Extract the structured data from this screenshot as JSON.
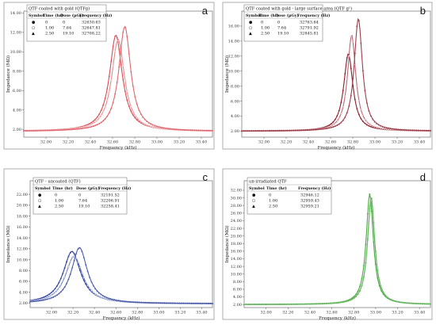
{
  "chart_data": [
    {
      "type": "line",
      "panel_label": "a",
      "legend_title": "QTF coated with gold (QTFg)",
      "legend_headers": [
        "Symbol",
        "Time (hr)",
        "Dose (µGy)",
        "Frequency (Hz)"
      ],
      "xlabel": "Frequency (kHz)",
      "ylabel": "Impedance (MΩ)",
      "xlim": [
        31.8,
        33.5
      ],
      "ylim": [
        1.2,
        14.2
      ],
      "xticks": [
        "32.00",
        "32.20",
        "32.40",
        "32.60",
        "32.80",
        "33.00",
        "33.20",
        "33.40"
      ],
      "yticks": [
        "2.00",
        "4.00",
        "6.00",
        "8.00",
        "10.00",
        "12.00",
        "14.00"
      ],
      "color": "#d94c54",
      "series": [
        {
          "symbol": "●",
          "time": "0",
          "dose": "0",
          "frequency": "32630.63",
          "peak_khz": 32.63,
          "peak_mohm": 11.7,
          "width_khz": 0.07
        },
        {
          "symbol": "○",
          "time": "1.00",
          "dose": "7.64",
          "frequency": "32647.81",
          "peak_khz": 32.65,
          "peak_mohm": 11.3,
          "width_khz": 0.07
        },
        {
          "symbol": "▲",
          "time": "2.50",
          "dose": "19.10",
          "frequency": "32708.22",
          "peak_khz": 32.71,
          "peak_mohm": 12.6,
          "width_khz": 0.065
        }
      ],
      "baseline_mohm": 1.8
    },
    {
      "type": "line",
      "panel_label": "b",
      "legend_title": "QTF coated with gold - large surface area (QTF g¹)",
      "legend_headers": [
        "Symbol",
        "Time (hr)",
        "Dose (µGy)",
        "Frequency (Hz)"
      ],
      "xlabel": "Frequency (kHz)",
      "ylabel": "Impedance (MΩ)",
      "xlim": [
        31.8,
        33.5
      ],
      "ylim": [
        1.2,
        18.0
      ],
      "xticks": [
        "32.00",
        "32.20",
        "32.40",
        "32.60",
        "32.80",
        "33.00",
        "33.20",
        "33.40"
      ],
      "yticks": [
        "2.00",
        "4.00",
        "6.00",
        "8.00",
        "10.00",
        "12.00",
        "14.00",
        "16.00"
      ],
      "color": "#8c1c2a",
      "series": [
        {
          "symbol": "●",
          "time": "0",
          "dose": "0",
          "frequency": "32763.64",
          "peak_khz": 32.76,
          "peak_mohm": 12.3,
          "width_khz": 0.05
        },
        {
          "symbol": "○",
          "time": "1.00",
          "dose": "7.64",
          "frequency": "32791.92",
          "peak_khz": 32.79,
          "peak_mohm": 14.8,
          "width_khz": 0.045
        },
        {
          "symbol": "▲",
          "time": "2.50",
          "dose": "19.10",
          "frequency": "32845.81",
          "peak_khz": 32.85,
          "peak_mohm": 17.0,
          "width_khz": 0.045
        }
      ],
      "baseline_mohm": 2.0
    },
    {
      "type": "line",
      "panel_label": "c",
      "legend_title": "QTF - uncoated (QTF)",
      "legend_headers": [
        "Symbol",
        "Time (hr)",
        "Dose (µGy)",
        "Frequency (Hz)"
      ],
      "xlabel": "Frequency (kHz)",
      "ylabel": "Impedance (MΩ)",
      "xlim": [
        31.8,
        33.5
      ],
      "ylim": [
        1.2,
        24.5
      ],
      "xticks": [
        "32.00",
        "32.20",
        "32.40",
        "32.60",
        "32.80",
        "33.00",
        "33.20",
        "33.40"
      ],
      "yticks": [
        "2.00",
        "4.00",
        "6.00",
        "8.00",
        "10.00",
        "12.00",
        "14.00",
        "16.00",
        "18.00",
        "20.00",
        "22.00"
      ],
      "color": "#2a3f9a",
      "series": [
        {
          "symbol": "●",
          "time": "0",
          "dose": "0",
          "frequency": "32191.52",
          "peak_khz": 32.19,
          "peak_mohm": 11.5,
          "width_khz": 0.1
        },
        {
          "symbol": "○",
          "time": "1.00",
          "dose": "7.64",
          "frequency": "32206.91",
          "peak_khz": 32.21,
          "peak_mohm": 10.6,
          "width_khz": 0.1
        },
        {
          "symbol": "▲",
          "time": "2.50",
          "dose": "19.10",
          "frequency": "32258.41",
          "peak_khz": 32.26,
          "peak_mohm": 12.2,
          "width_khz": 0.09
        }
      ],
      "baseline_mohm": 1.9
    },
    {
      "type": "line",
      "panel_label": "d",
      "legend_title": "un-irradiated QTF",
      "legend_headers": [
        "Symbol",
        "Time (hr)",
        "Frequency (Hz)"
      ],
      "xlabel": "Frequency (kHz)",
      "ylabel": "Impedance (MΩ)",
      "xlim": [
        31.8,
        33.5
      ],
      "ylim": [
        1.2,
        34.5
      ],
      "xticks": [
        "32.00",
        "32.20",
        "32.40",
        "32.60",
        "32.80",
        "33.00",
        "33.20",
        "33.40"
      ],
      "yticks": [
        "2.00",
        "4.00",
        "6.00",
        "8.00",
        "10.00",
        "12.00",
        "14.00",
        "16.00",
        "18.00",
        "20.00",
        "22.00",
        "24.00",
        "26.00",
        "28.00",
        "30.00",
        "32.00"
      ],
      "color": "#4aa843",
      "series": [
        {
          "symbol": "●",
          "time": "0",
          "frequency": "32946.12",
          "peak_khz": 32.946,
          "peak_mohm": 31.0,
          "width_khz": 0.04
        },
        {
          "symbol": "○",
          "time": "1.00",
          "frequency": "32959.43",
          "peak_khz": 32.959,
          "peak_mohm": 29.5,
          "width_khz": 0.04
        },
        {
          "symbol": "▲",
          "time": "2.50",
          "frequency": "32959.21",
          "peak_khz": 32.959,
          "peak_mohm": 30.2,
          "width_khz": 0.04
        }
      ],
      "baseline_mohm": 2.0
    }
  ]
}
